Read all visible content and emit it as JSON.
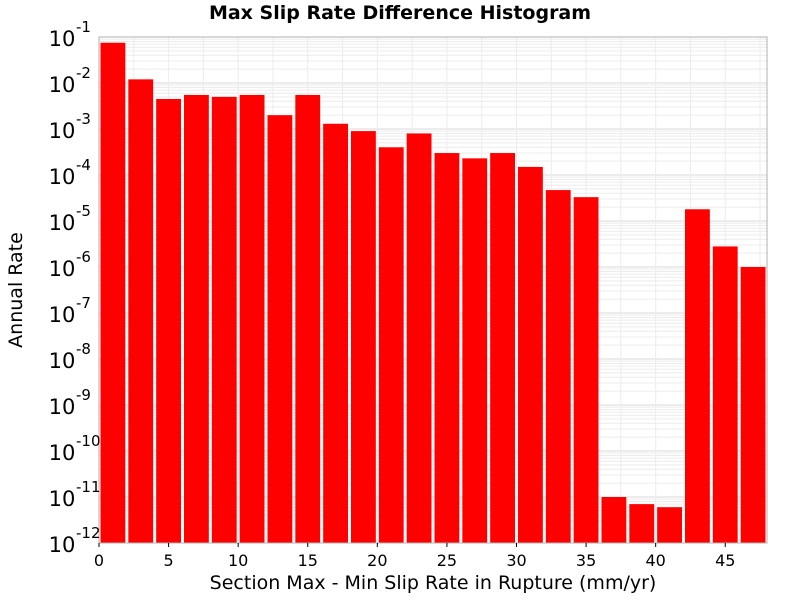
{
  "chart_data": {
    "type": "bar",
    "title": "Max Slip Rate Difference Histogram",
    "xlabel": "Section Max - Min Slip Rate in Rupture (mm/yr)",
    "ylabel": "Annual Rate",
    "yscale": "log",
    "ylim": [
      1e-12,
      0.1
    ],
    "xlim": [
      0,
      48
    ],
    "bin_width": 2,
    "x_ticks": [
      "0",
      "5",
      "10",
      "15",
      "20",
      "25",
      "30",
      "35",
      "40",
      "45"
    ],
    "x_tick_values": [
      0,
      5,
      10,
      15,
      20,
      25,
      30,
      35,
      40,
      45
    ],
    "y_tick_exponents": [
      "-1",
      "-2",
      "-3",
      "-4",
      "-5",
      "-6",
      "-7",
      "-8",
      "-9",
      "-10",
      "-11",
      "-12"
    ],
    "y_tick_base": "10",
    "grid": true,
    "bar_color": "#ff0000",
    "x": [
      1,
      3,
      5,
      7,
      9,
      11,
      13,
      15,
      17,
      19,
      21,
      23,
      25,
      27,
      29,
      31,
      33,
      35,
      37,
      39,
      41,
      43,
      45,
      47
    ],
    "values": [
      0.075,
      0.012,
      0.0045,
      0.0055,
      0.005,
      0.0055,
      0.002,
      0.0055,
      0.0013,
      0.0009,
      0.0004,
      0.0008,
      0.0003,
      0.00023,
      0.0003,
      0.00015,
      4.7e-05,
      3.3e-05,
      1e-11,
      7e-12,
      6e-12,
      1.8e-05,
      2.8e-06,
      1e-06
    ]
  }
}
